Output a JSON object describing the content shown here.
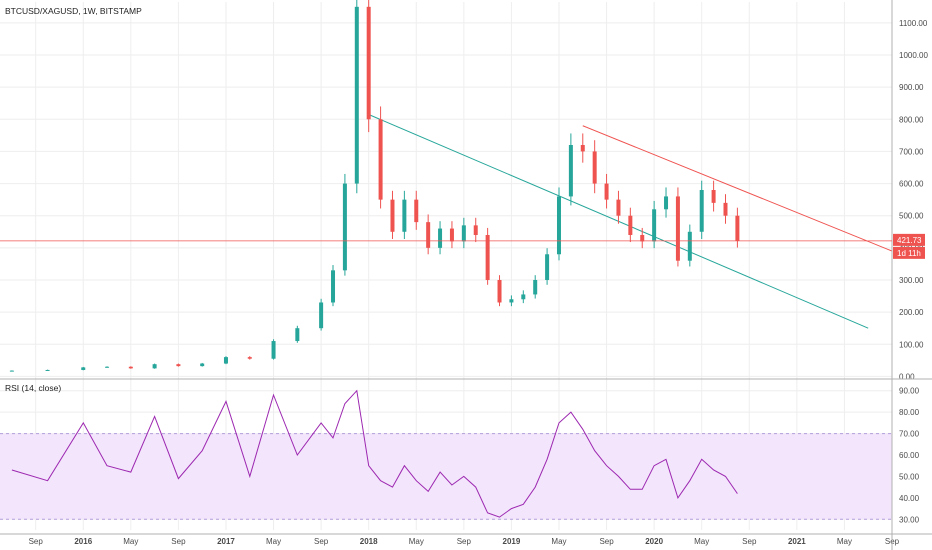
{
  "chart_data": [
    {
      "type": "candlestick",
      "title": "BTCUSD/XAGUSD, 1W, BITSTAMP",
      "ylim": [
        -5,
        1165
      ],
      "y_ticks": [
        "0.00",
        "100.00",
        "200.00",
        "300.00",
        "400.00",
        "500.00",
        "600.00",
        "700.00",
        "800.00",
        "900.00",
        "1000.00",
        "1100.00"
      ],
      "last_price": "421.73",
      "countdown": "1d 11h",
      "trendlines": [
        {
          "color": "#26a69a",
          "from": [
            "2018-01",
            815
          ],
          "to": [
            "2021-07",
            150
          ]
        },
        {
          "color": "#ef5350",
          "from": [
            "2019-07",
            780
          ],
          "to": [
            "2021-09",
            390
          ]
        }
      ],
      "series": [
        {
          "x": "2015-07",
          "y": 18
        },
        {
          "x": "2015-10",
          "y": 20
        },
        {
          "x": "2016-01",
          "y": 28
        },
        {
          "x": "2016-03",
          "y": 30
        },
        {
          "x": "2016-05",
          "y": 25
        },
        {
          "x": "2016-07",
          "y": 38
        },
        {
          "x": "2016-09",
          "y": 32
        },
        {
          "x": "2016-11",
          "y": 40
        },
        {
          "x": "2017-01",
          "y": 60
        },
        {
          "x": "2017-03",
          "y": 55
        },
        {
          "x": "2017-05",
          "y": 110
        },
        {
          "x": "2017-07",
          "y": 150
        },
        {
          "x": "2017-09",
          "y": 230
        },
        {
          "x": "2017-10",
          "y": 330
        },
        {
          "x": "2017-11",
          "y": 600
        },
        {
          "x": "2017-12",
          "y": 1150
        },
        {
          "x": "2018-01",
          "y": 800
        },
        {
          "x": "2018-02",
          "y": 550
        },
        {
          "x": "2018-03",
          "y": 450
        },
        {
          "x": "2018-04",
          "y": 550
        },
        {
          "x": "2018-05",
          "y": 480
        },
        {
          "x": "2018-06",
          "y": 400
        },
        {
          "x": "2018-07",
          "y": 460
        },
        {
          "x": "2018-08",
          "y": 420
        },
        {
          "x": "2018-09",
          "y": 470
        },
        {
          "x": "2018-10",
          "y": 440
        },
        {
          "x": "2018-11",
          "y": 300
        },
        {
          "x": "2018-12",
          "y": 230
        },
        {
          "x": "2019-01",
          "y": 240
        },
        {
          "x": "2019-02",
          "y": 255
        },
        {
          "x": "2019-03",
          "y": 300
        },
        {
          "x": "2019-04",
          "y": 380
        },
        {
          "x": "2019-05",
          "y": 560
        },
        {
          "x": "2019-06",
          "y": 720
        },
        {
          "x": "2019-07",
          "y": 700
        },
        {
          "x": "2019-08",
          "y": 600
        },
        {
          "x": "2019-09",
          "y": 550
        },
        {
          "x": "2019-10",
          "y": 500
        },
        {
          "x": "2019-11",
          "y": 440
        },
        {
          "x": "2019-12",
          "y": 420
        },
        {
          "x": "2020-01",
          "y": 520
        },
        {
          "x": "2020-02",
          "y": 560
        },
        {
          "x": "2020-03",
          "y": 360
        },
        {
          "x": "2020-04",
          "y": 450
        },
        {
          "x": "2020-05",
          "y": 580
        },
        {
          "x": "2020-06",
          "y": 540
        },
        {
          "x": "2020-07",
          "y": 500
        },
        {
          "x": "2020-08",
          "y": 422
        }
      ]
    },
    {
      "type": "line",
      "title": "RSI (14, close)",
      "ylim": [
        25,
        95
      ],
      "y_ticks": [
        "30.00",
        "40.00",
        "50.00",
        "60.00",
        "70.00",
        "80.00",
        "90.00"
      ],
      "band": [
        30,
        70
      ],
      "series": [
        {
          "x": "2015-07",
          "y": 53
        },
        {
          "x": "2015-10",
          "y": 48
        },
        {
          "x": "2016-01",
          "y": 75
        },
        {
          "x": "2016-03",
          "y": 55
        },
        {
          "x": "2016-05",
          "y": 52
        },
        {
          "x": "2016-07",
          "y": 78
        },
        {
          "x": "2016-09",
          "y": 49
        },
        {
          "x": "2016-11",
          "y": 62
        },
        {
          "x": "2017-01",
          "y": 85
        },
        {
          "x": "2017-03",
          "y": 50
        },
        {
          "x": "2017-05",
          "y": 88
        },
        {
          "x": "2017-07",
          "y": 60
        },
        {
          "x": "2017-09",
          "y": 75
        },
        {
          "x": "2017-10",
          "y": 68
        },
        {
          "x": "2017-11",
          "y": 84
        },
        {
          "x": "2017-12",
          "y": 90
        },
        {
          "x": "2018-01",
          "y": 55
        },
        {
          "x": "2018-02",
          "y": 48
        },
        {
          "x": "2018-03",
          "y": 45
        },
        {
          "x": "2018-04",
          "y": 55
        },
        {
          "x": "2018-05",
          "y": 48
        },
        {
          "x": "2018-06",
          "y": 43
        },
        {
          "x": "2018-07",
          "y": 52
        },
        {
          "x": "2018-08",
          "y": 46
        },
        {
          "x": "2018-09",
          "y": 50
        },
        {
          "x": "2018-10",
          "y": 45
        },
        {
          "x": "2018-11",
          "y": 33
        },
        {
          "x": "2018-12",
          "y": 31
        },
        {
          "x": "2019-01",
          "y": 35
        },
        {
          "x": "2019-02",
          "y": 37
        },
        {
          "x": "2019-03",
          "y": 45
        },
        {
          "x": "2019-04",
          "y": 58
        },
        {
          "x": "2019-05",
          "y": 75
        },
        {
          "x": "2019-06",
          "y": 80
        },
        {
          "x": "2019-07",
          "y": 72
        },
        {
          "x": "2019-08",
          "y": 62
        },
        {
          "x": "2019-09",
          "y": 55
        },
        {
          "x": "2019-10",
          "y": 50
        },
        {
          "x": "2019-11",
          "y": 44
        },
        {
          "x": "2019-12",
          "y": 44
        },
        {
          "x": "2020-01",
          "y": 55
        },
        {
          "x": "2020-02",
          "y": 58
        },
        {
          "x": "2020-03",
          "y": 40
        },
        {
          "x": "2020-04",
          "y": 48
        },
        {
          "x": "2020-05",
          "y": 58
        },
        {
          "x": "2020-06",
          "y": 53
        },
        {
          "x": "2020-07",
          "y": 50
        },
        {
          "x": "2020-08",
          "y": 42
        }
      ]
    }
  ],
  "x_axis": {
    "range": [
      "2015-06",
      "2021-09"
    ],
    "ticks": [
      {
        "x": "2015-09",
        "label": "Sep",
        "bold": false
      },
      {
        "x": "2016-01",
        "label": "2016",
        "bold": true
      },
      {
        "x": "2016-05",
        "label": "May",
        "bold": false
      },
      {
        "x": "2016-09",
        "label": "Sep",
        "bold": false
      },
      {
        "x": "2017-01",
        "label": "2017",
        "bold": true
      },
      {
        "x": "2017-05",
        "label": "May",
        "bold": false
      },
      {
        "x": "2017-09",
        "label": "Sep",
        "bold": false
      },
      {
        "x": "2018-01",
        "label": "2018",
        "bold": true
      },
      {
        "x": "2018-05",
        "label": "May",
        "bold": false
      },
      {
        "x": "2018-09",
        "label": "Sep",
        "bold": false
      },
      {
        "x": "2019-01",
        "label": "2019",
        "bold": true
      },
      {
        "x": "2019-05",
        "label": "May",
        "bold": false
      },
      {
        "x": "2019-09",
        "label": "Sep",
        "bold": false
      },
      {
        "x": "2020-01",
        "label": "2020",
        "bold": true
      },
      {
        "x": "2020-05",
        "label": "May",
        "bold": false
      },
      {
        "x": "2020-09",
        "label": "Sep",
        "bold": false
      },
      {
        "x": "2021-01",
        "label": "2021",
        "bold": true
      },
      {
        "x": "2021-05",
        "label": "May",
        "bold": false
      },
      {
        "x": "2021-09",
        "label": "Sep",
        "bold": false
      }
    ]
  },
  "colors": {
    "up": "#26a69a",
    "down": "#ef5350",
    "rsi_line": "#9c27b0",
    "rsi_band": "#f3e5fc",
    "grid": "#eeeeee",
    "price_line": "#ef5350"
  }
}
